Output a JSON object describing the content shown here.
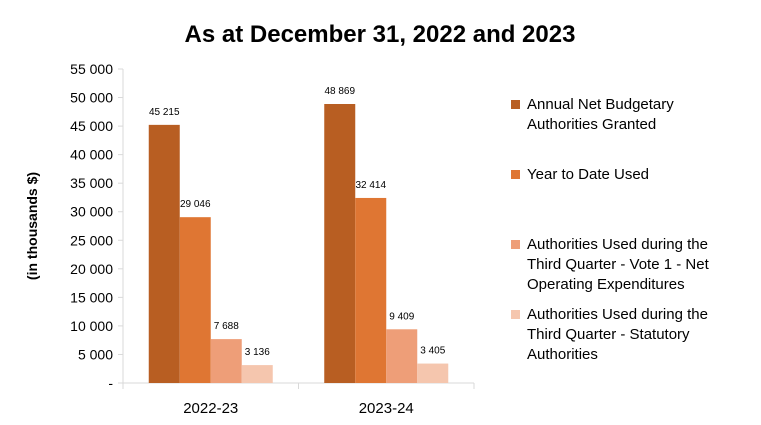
{
  "chart_data": {
    "type": "bar",
    "title": "As at December 31, 2022 and 2023",
    "ylabel": "(in thousands $)",
    "xlabel": "",
    "categories": [
      "2022-23",
      "2023-24"
    ],
    "ylim": [
      0,
      55000
    ],
    "yticks": [
      0,
      5000,
      10000,
      15000,
      20000,
      25000,
      30000,
      35000,
      40000,
      45000,
      50000,
      55000
    ],
    "ytick_labels": [
      "-",
      "5 000",
      "10 000",
      "15 000",
      "20 000",
      "25 000",
      "30 000",
      "35 000",
      "40 000",
      "45 000",
      "50 000",
      "55 000"
    ],
    "grid": false,
    "legend_position": "right",
    "series": [
      {
        "name": "Annual Net Budgetary Authorities Granted",
        "legend_lines": [
          "Annual Net Budgetary",
          "Authorities Granted"
        ],
        "color": "#B85E22",
        "values": [
          45215,
          48869
        ],
        "labels": [
          "45 215",
          "48 869"
        ]
      },
      {
        "name": "Year to Date Used",
        "legend_lines": [
          "Year to Date Used"
        ],
        "color": "#DF7633",
        "values": [
          29046,
          32414
        ],
        "labels": [
          "29 046",
          "32 414"
        ]
      },
      {
        "name": "Authorities Used during the Third Quarter - Vote 1 - Net Operating Expenditures",
        "legend_lines": [
          "Authorities Used during the",
          "Third Quarter - Vote 1 - Net",
          "Operating Expenditures"
        ],
        "color": "#EE9E78",
        "values": [
          7688,
          9409
        ],
        "labels": [
          "7 688",
          "9 409"
        ]
      },
      {
        "name": "Authorities Used during the Third Quarter  - Statutory Authorities",
        "legend_lines": [
          "Authorities Used during the",
          "Third Quarter  - Statutory",
          "Authorities"
        ],
        "color": "#F5C6AE",
        "values": [
          3136,
          3405
        ],
        "labels": [
          "3 136",
          "3 405"
        ]
      }
    ]
  }
}
